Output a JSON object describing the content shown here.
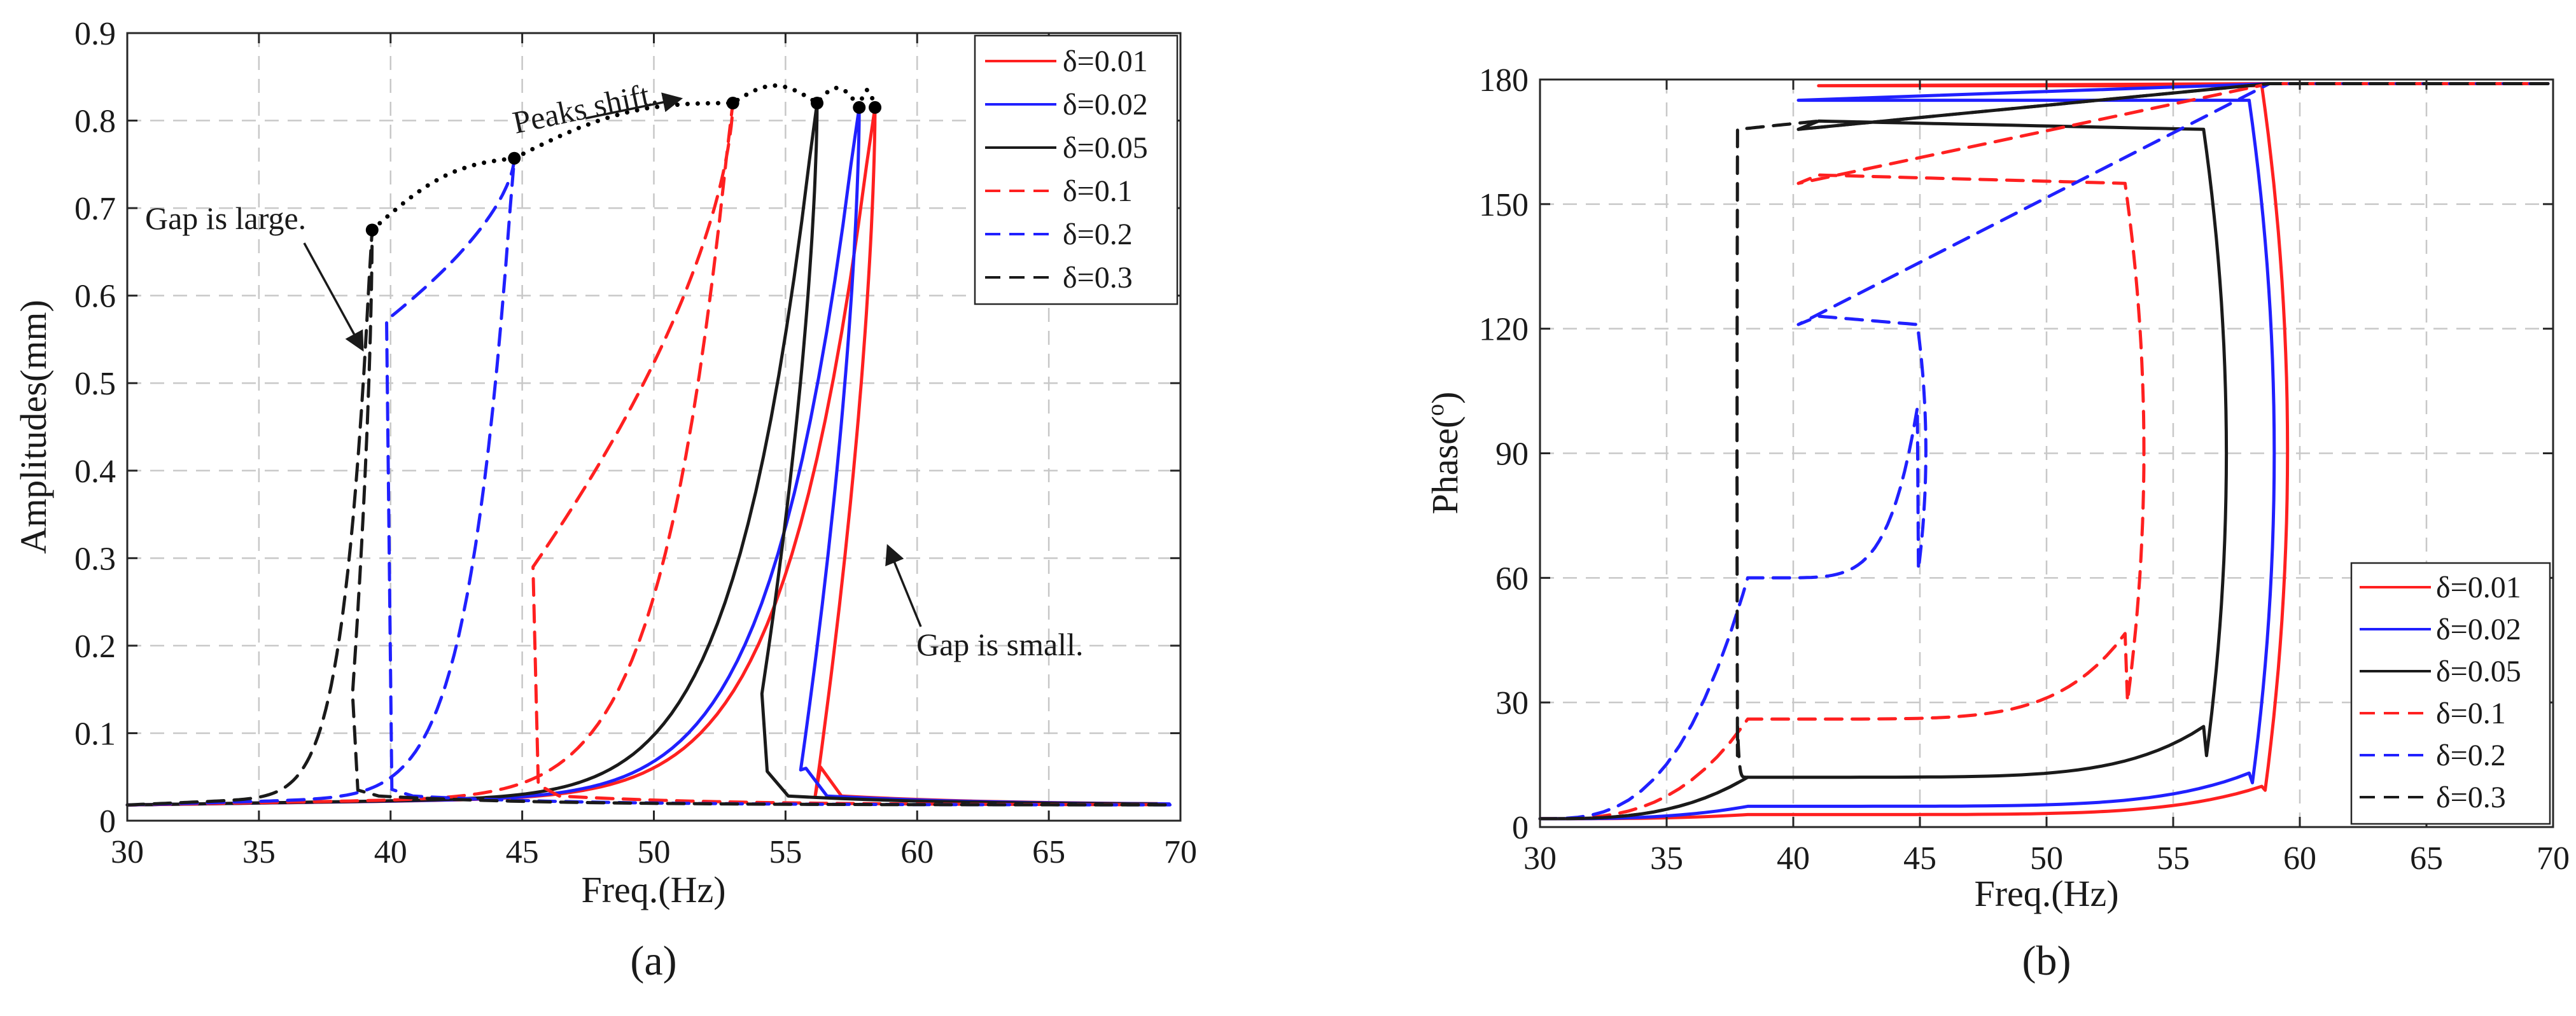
{
  "colors": {
    "red": "#ff2020",
    "blue": "#2020ff",
    "black": "#1a1a1a"
  },
  "chart_data": [
    {
      "panel_label": "(a)",
      "type": "line",
      "xlabel": "Freq.(Hz)",
      "ylabel": "Amplitudes(mm)",
      "xlim": [
        30,
        70
      ],
      "ylim": [
        0,
        0.9
      ],
      "xticks": [
        "30",
        "35",
        "40",
        "45",
        "50",
        "55",
        "60",
        "65",
        "70"
      ],
      "yticks": [
        "0",
        "0.1",
        "0.2",
        "0.3",
        "0.4",
        "0.5",
        "0.6",
        "0.7",
        "0.8",
        "0.9"
      ],
      "grid": true,
      "legend_position": "top-right",
      "series": [
        {
          "name": "δ=0.01",
          "color": "red",
          "dash": "solid",
          "peak_freq": 58.4,
          "peak_amp": 0.815,
          "jump_amp": 0.028
        },
        {
          "name": "δ=0.02",
          "color": "blue",
          "dash": "solid",
          "peak_freq": 57.8,
          "peak_amp": 0.815,
          "jump_amp": 0.058
        },
        {
          "name": "δ=0.05",
          "color": "black",
          "dash": "solid",
          "peak_freq": 56.2,
          "peak_amp": 0.82,
          "jump_amp": 0.145
        },
        {
          "name": "δ=0.1",
          "color": "red",
          "dash": "dashed",
          "peak_freq": 53.0,
          "peak_amp": 0.82,
          "jump_amp": 0.29
        },
        {
          "name": "δ=0.2",
          "color": "blue",
          "dash": "dashed",
          "peak_freq": 44.7,
          "peak_amp": 0.757,
          "jump_amp": 0.572
        },
        {
          "name": "δ=0.3",
          "color": "black",
          "dash": "dashed",
          "peak_freq": 39.3,
          "peak_amp": 0.675,
          "jump_amp": 0.145
        }
      ],
      "peak_trend": {
        "label": "Peaks  shift.",
        "points": [
          [
            39.3,
            0.675
          ],
          [
            44.7,
            0.757
          ],
          [
            53.0,
            0.82
          ],
          [
            56.2,
            0.82
          ],
          [
            57.8,
            0.815
          ],
          [
            58.4,
            0.815
          ]
        ]
      },
      "annotations": [
        {
          "text": "Gap is large.",
          "arrow_to": [
            39.0,
            0.43
          ]
        },
        {
          "text": "Gap is small.",
          "arrow_to": [
            58.5,
            0.52
          ]
        }
      ]
    },
    {
      "panel_label": "(b)",
      "type": "line",
      "xlabel": "Freq.(Hz)",
      "ylabel": "Phase(°)",
      "ylabel_base": "Phase(",
      "ylabel_sup": "o",
      "ylabel_end": ")",
      "xlim": [
        30,
        70
      ],
      "ylim": [
        0,
        180
      ],
      "xticks": [
        "30",
        "35",
        "40",
        "45",
        "50",
        "55",
        "60",
        "65",
        "70"
      ],
      "yticks": [
        "0",
        "30",
        "60",
        "90",
        "120",
        "150",
        "180"
      ],
      "grid": true,
      "legend_position": "bottom-right",
      "series": [
        {
          "name": "δ=0.01",
          "color": "red",
          "dash": "solid",
          "loop_right": 58.5,
          "low": 3,
          "high": 178.5
        },
        {
          "name": "δ=0.02",
          "color": "blue",
          "dash": "solid",
          "loop_right": 58.0,
          "low": 5,
          "high": 175
        },
        {
          "name": "δ=0.05",
          "color": "black",
          "dash": "solid",
          "loop_right": 56.2,
          "low": 12,
          "high": 168
        },
        {
          "name": "δ=0.1",
          "color": "red",
          "dash": "dashed",
          "loop_right": 53.1,
          "low": 26,
          "high": 155
        },
        {
          "name": "δ=0.2",
          "color": "blue",
          "dash": "dashed",
          "loop_right": 44.9,
          "low": 60,
          "high": 121
        },
        {
          "name": "δ=0.3",
          "color": "black",
          "dash": "dashed",
          "loop_right": 37.8,
          "low": 12,
          "high": 168
        }
      ]
    }
  ]
}
